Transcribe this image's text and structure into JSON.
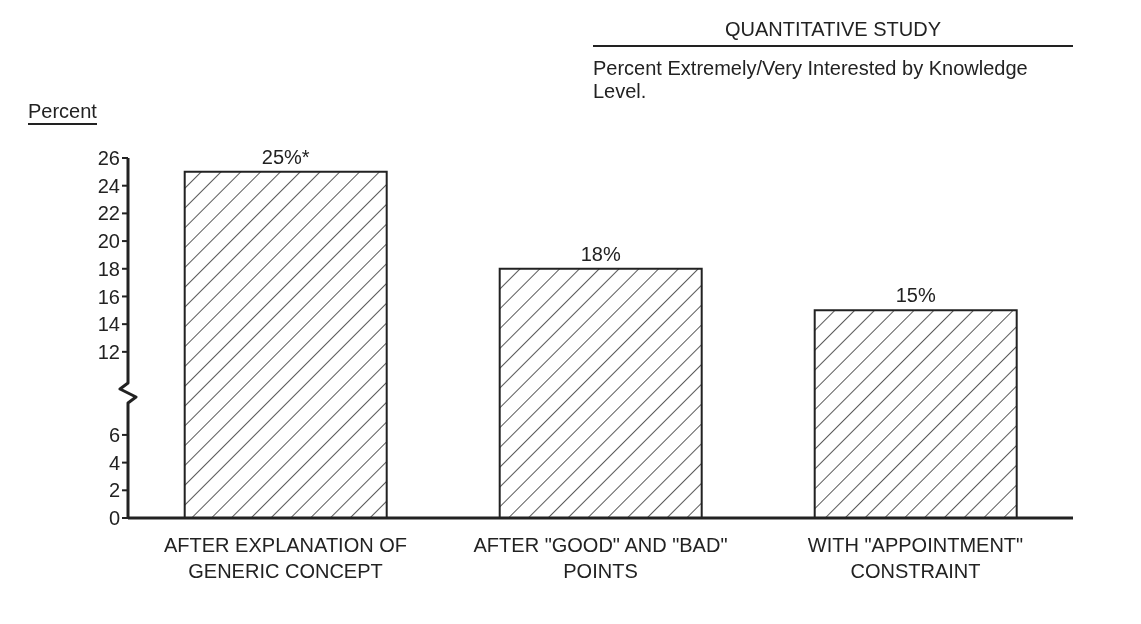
{
  "chart_data": {
    "type": "bar",
    "title": "QUANTITATIVE STUDY",
    "subtitle": "Percent Extremely/Very Interested by Knowledge Level.",
    "ylabel": "Percent",
    "categories": [
      "AFTER EXPLANATION OF GENERIC CONCEPT",
      "AFTER \"GOOD\" AND \"BAD\" POINTS",
      "WITH \"APPOINTMENT\" CONSTRAINT"
    ],
    "values": [
      25,
      18,
      15
    ],
    "value_labels": [
      "25%*",
      "18%",
      "15%"
    ],
    "color": "#222222",
    "ylim": [
      0,
      26
    ],
    "yticks": [
      0,
      2,
      4,
      6,
      12,
      14,
      16,
      18,
      20,
      22,
      24,
      26
    ],
    "grid": false
  }
}
